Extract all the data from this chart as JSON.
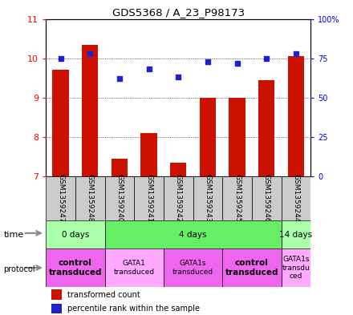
{
  "title": "GDS5368 / A_23_P98173",
  "samples": [
    "GSM1359247",
    "GSM1359248",
    "GSM1359240",
    "GSM1359241",
    "GSM1359242",
    "GSM1359243",
    "GSM1359245",
    "GSM1359246",
    "GSM1359244"
  ],
  "bar_values": [
    9.7,
    10.35,
    7.45,
    8.1,
    7.35,
    9.0,
    9.0,
    9.45,
    10.05
  ],
  "dot_values": [
    75,
    78,
    62,
    68,
    63,
    73,
    72,
    75,
    78
  ],
  "bar_color": "#cc1100",
  "dot_color": "#2222cc",
  "ylim_left": [
    7,
    11
  ],
  "ylim_right": [
    0,
    100
  ],
  "yticks_left": [
    7,
    8,
    9,
    10,
    11
  ],
  "yticks_right": [
    0,
    25,
    50,
    75,
    100
  ],
  "ytick_labels_right": [
    "0",
    "25",
    "50",
    "75",
    "100%"
  ],
  "time_groups": [
    {
      "label": "0 days",
      "start": 0,
      "end": 2,
      "color": "#aaffaa"
    },
    {
      "label": "4 days",
      "start": 2,
      "end": 8,
      "color": "#66ee66"
    },
    {
      "label": "14 days",
      "start": 8,
      "end": 9,
      "color": "#aaffaa"
    }
  ],
  "protocol_groups": [
    {
      "label": "control\ntransduced",
      "start": 0,
      "end": 2,
      "color": "#ee66ee",
      "bold": true
    },
    {
      "label": "GATA1\ntransduced",
      "start": 2,
      "end": 4,
      "color": "#ffaaff",
      "bold": false
    },
    {
      "label": "GATA1s\ntransduced",
      "start": 4,
      "end": 6,
      "color": "#ee66ee",
      "bold": false
    },
    {
      "label": "control\ntransduced",
      "start": 6,
      "end": 8,
      "color": "#ee66ee",
      "bold": true
    },
    {
      "label": "GATA1s\ntransdu\nced",
      "start": 8,
      "end": 9,
      "color": "#ffaaff",
      "bold": false
    }
  ],
  "background_color": "#ffffff",
  "sample_box_color": "#cccccc"
}
